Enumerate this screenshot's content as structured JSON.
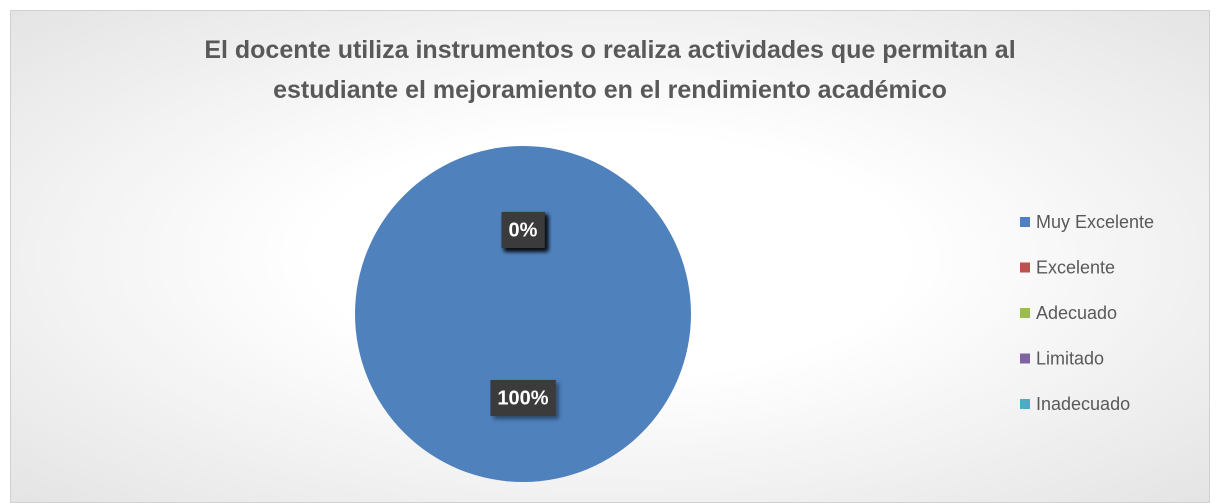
{
  "chart_data": {
    "type": "pie",
    "title": "El docente utiliza instrumentos o realiza actividades que permitan al estudiante el mejoramiento en el rendimiento académico",
    "categories": [
      "Muy Excelente",
      "Excelente",
      "Adecuado",
      "Limitado",
      "Inadecuado"
    ],
    "values": [
      100,
      0,
      0,
      0,
      0
    ],
    "value_labels": [
      "100%",
      "0%",
      "0%",
      "0%",
      "0%"
    ],
    "colors": [
      "#4f81bd",
      "#c0504d",
      "#9bbb59",
      "#8064a2",
      "#4bacc6"
    ],
    "legend": "right"
  }
}
